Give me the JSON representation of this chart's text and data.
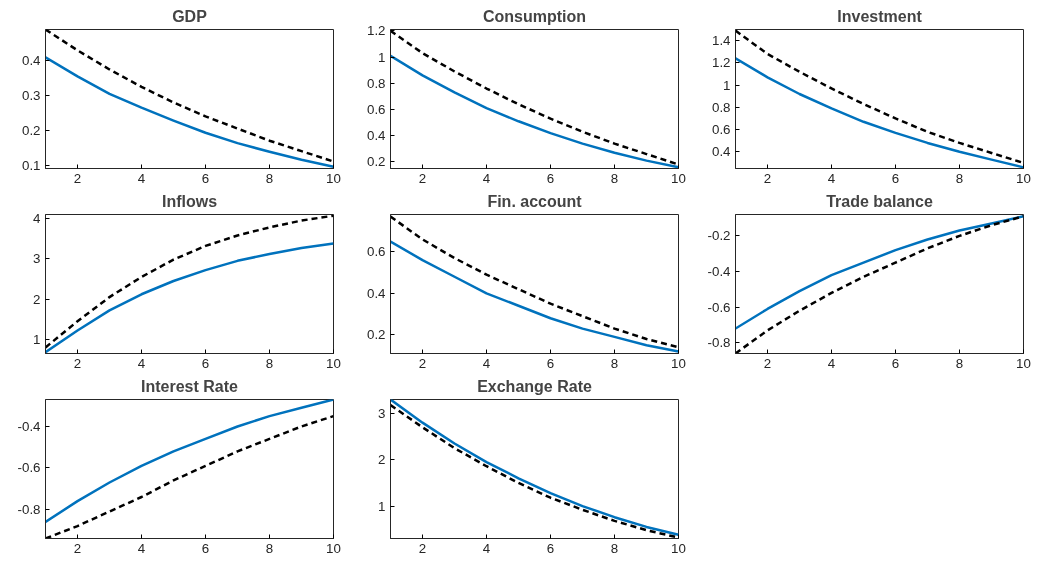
{
  "chart_data": [
    {
      "type": "line",
      "title": "GDP",
      "x": [
        1,
        2,
        3,
        4,
        5,
        6,
        7,
        8,
        9,
        10
      ],
      "xlim": [
        1,
        10
      ],
      "xticks": [
        2,
        4,
        6,
        8,
        10
      ],
      "ylim": [
        0.09,
        0.49
      ],
      "yticks": [
        0.1,
        0.2,
        0.3,
        0.4
      ],
      "grid": false,
      "series": [
        {
          "color": "#0072bd",
          "line_style": "solid",
          "values": [
            0.41,
            0.355,
            0.305,
            0.265,
            0.228,
            0.193,
            0.163,
            0.138,
            0.115,
            0.095
          ]
        },
        {
          "color": "#000000",
          "line_style": "dashed",
          "values": [
            0.49,
            0.43,
            0.375,
            0.325,
            0.28,
            0.24,
            0.205,
            0.17,
            0.14,
            0.11
          ]
        }
      ]
    },
    {
      "type": "line",
      "title": "Consumption",
      "x": [
        1,
        2,
        3,
        4,
        5,
        6,
        7,
        8,
        9,
        10
      ],
      "xlim": [
        1,
        10
      ],
      "xticks": [
        2,
        4,
        6,
        8,
        10
      ],
      "ylim": [
        0.15,
        1.21
      ],
      "yticks": [
        0.2,
        0.4,
        0.6,
        0.8,
        1,
        1.2
      ],
      "grid": false,
      "series": [
        {
          "color": "#0072bd",
          "line_style": "solid",
          "values": [
            1.01,
            0.86,
            0.73,
            0.61,
            0.51,
            0.42,
            0.34,
            0.27,
            0.21,
            0.16
          ]
        },
        {
          "color": "#000000",
          "line_style": "dashed",
          "values": [
            1.2,
            1.03,
            0.89,
            0.76,
            0.64,
            0.53,
            0.43,
            0.34,
            0.26,
            0.18
          ]
        }
      ]
    },
    {
      "type": "line",
      "title": "Investment",
      "x": [
        1,
        2,
        3,
        4,
        5,
        6,
        7,
        8,
        9,
        10
      ],
      "xlim": [
        1,
        10
      ],
      "xticks": [
        2,
        4,
        6,
        8,
        10
      ],
      "ylim": [
        0.25,
        1.5
      ],
      "yticks": [
        0.4,
        0.6,
        0.8,
        1,
        1.2,
        1.4
      ],
      "grid": false,
      "series": [
        {
          "color": "#0072bd",
          "line_style": "solid",
          "values": [
            1.24,
            1.07,
            0.92,
            0.79,
            0.67,
            0.57,
            0.48,
            0.4,
            0.33,
            0.26
          ]
        },
        {
          "color": "#000000",
          "line_style": "dashed",
          "values": [
            1.49,
            1.28,
            1.12,
            0.97,
            0.83,
            0.7,
            0.58,
            0.48,
            0.39,
            0.3
          ]
        }
      ]
    },
    {
      "type": "line",
      "title": "Inflows",
      "x": [
        1,
        2,
        3,
        4,
        5,
        6,
        7,
        8,
        9,
        10
      ],
      "xlim": [
        1,
        10
      ],
      "xticks": [
        2,
        4,
        6,
        8,
        10
      ],
      "ylim": [
        0.65,
        4.1
      ],
      "yticks": [
        1,
        2,
        3,
        4
      ],
      "grid": false,
      "series": [
        {
          "color": "#0072bd",
          "line_style": "solid",
          "values": [
            0.68,
            1.22,
            1.72,
            2.12,
            2.45,
            2.72,
            2.95,
            3.12,
            3.27,
            3.38
          ]
        },
        {
          "color": "#000000",
          "line_style": "dashed",
          "values": [
            0.8,
            1.45,
            2.05,
            2.55,
            2.98,
            3.32,
            3.58,
            3.78,
            3.95,
            4.07
          ]
        }
      ]
    },
    {
      "type": "line",
      "title": "Fin. account",
      "x": [
        1,
        2,
        3,
        4,
        5,
        6,
        7,
        8,
        9,
        10
      ],
      "xlim": [
        1,
        10
      ],
      "xticks": [
        2,
        4,
        6,
        8,
        10
      ],
      "ylim": [
        0.11,
        0.78
      ],
      "yticks": [
        0.2,
        0.4,
        0.6
      ],
      "grid": false,
      "series": [
        {
          "color": "#0072bd",
          "line_style": "solid",
          "values": [
            0.65,
            0.56,
            0.48,
            0.4,
            0.34,
            0.28,
            0.23,
            0.19,
            0.15,
            0.12
          ]
        },
        {
          "color": "#000000",
          "line_style": "dashed",
          "values": [
            0.77,
            0.66,
            0.57,
            0.49,
            0.42,
            0.35,
            0.29,
            0.23,
            0.18,
            0.14
          ]
        }
      ]
    },
    {
      "type": "line",
      "title": "Trade balance",
      "x": [
        1,
        2,
        3,
        4,
        5,
        6,
        7,
        8,
        9,
        10
      ],
      "xlim": [
        1,
        10
      ],
      "xticks": [
        2,
        4,
        6,
        8,
        10
      ],
      "ylim": [
        -0.86,
        -0.08
      ],
      "yticks": [
        -0.8,
        -0.6,
        -0.4,
        -0.2
      ],
      "grid": false,
      "series": [
        {
          "color": "#0072bd",
          "line_style": "solid",
          "values": [
            -0.72,
            -0.61,
            -0.51,
            -0.42,
            -0.35,
            -0.28,
            -0.22,
            -0.17,
            -0.13,
            -0.09
          ]
        },
        {
          "color": "#000000",
          "line_style": "dashed",
          "values": [
            -0.86,
            -0.73,
            -0.62,
            -0.52,
            -0.43,
            -0.35,
            -0.27,
            -0.2,
            -0.14,
            -0.09
          ]
        }
      ]
    },
    {
      "type": "line",
      "title": "Interest Rate",
      "x": [
        1,
        2,
        3,
        4,
        5,
        6,
        7,
        8,
        9,
        10
      ],
      "xlim": [
        1,
        10
      ],
      "xticks": [
        2,
        4,
        6,
        8,
        10
      ],
      "ylim": [
        -0.94,
        -0.27
      ],
      "yticks": [
        -0.8,
        -0.6,
        -0.4
      ],
      "grid": false,
      "series": [
        {
          "color": "#0072bd",
          "line_style": "solid",
          "values": [
            -0.86,
            -0.76,
            -0.67,
            -0.59,
            -0.52,
            -0.46,
            -0.4,
            -0.35,
            -0.31,
            -0.27
          ]
        },
        {
          "color": "#000000",
          "line_style": "dashed",
          "values": [
            -0.94,
            -0.88,
            -0.81,
            -0.74,
            -0.66,
            -0.59,
            -0.52,
            -0.46,
            -0.4,
            -0.35
          ]
        }
      ]
    },
    {
      "type": "line",
      "title": "Exchange Rate",
      "x": [
        1,
        2,
        3,
        4,
        5,
        6,
        7,
        8,
        9,
        10
      ],
      "xlim": [
        1,
        10
      ],
      "xticks": [
        2,
        4,
        6,
        8,
        10
      ],
      "ylim": [
        0.3,
        3.3
      ],
      "yticks": [
        1,
        2,
        3
      ],
      "grid": false,
      "series": [
        {
          "color": "#0072bd",
          "line_style": "solid",
          "values": [
            3.3,
            2.8,
            2.35,
            1.95,
            1.6,
            1.28,
            1.0,
            0.76,
            0.55,
            0.38
          ]
        },
        {
          "color": "#000000",
          "line_style": "dashed",
          "values": [
            3.18,
            2.7,
            2.25,
            1.86,
            1.5,
            1.18,
            0.92,
            0.68,
            0.48,
            0.32
          ]
        }
      ]
    }
  ]
}
